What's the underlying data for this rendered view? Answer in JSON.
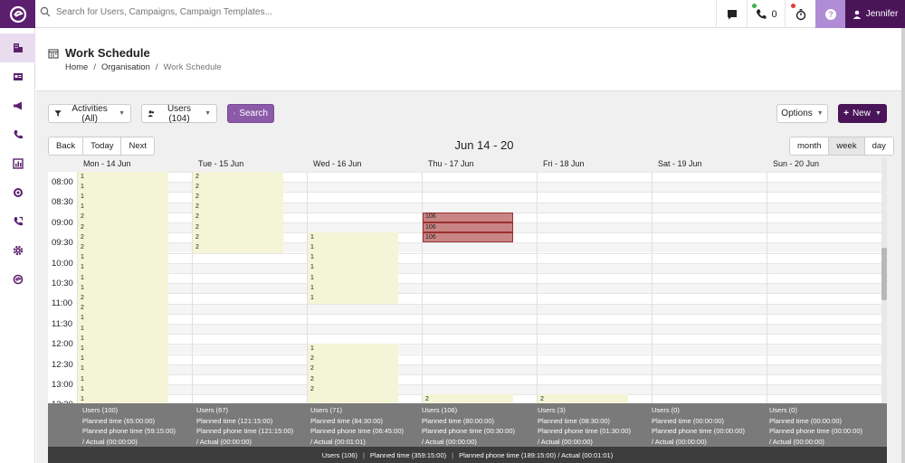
{
  "topbar": {
    "search_placeholder": "Search for Users, Campaigns, Campaign Templates...",
    "phone_count": "0",
    "user_name": "Jennifer",
    "accent": "#5b1f6e"
  },
  "sidebar": {
    "items": [
      {
        "icon": "organisation-icon",
        "active": true
      },
      {
        "icon": "id-card-icon"
      },
      {
        "icon": "megaphone-icon"
      },
      {
        "icon": "phone-icon"
      },
      {
        "icon": "reports-icon"
      },
      {
        "icon": "target-icon"
      },
      {
        "icon": "call-icon"
      },
      {
        "icon": "gear-icon"
      },
      {
        "icon": "brand-icon"
      }
    ]
  },
  "header": {
    "title": "Work Schedule",
    "breadcrumb": [
      "Home",
      "Organisation",
      "Work Schedule"
    ]
  },
  "toolbar": {
    "activities_label": "Activities (All)",
    "users_label": "Users (104)",
    "search_label": "Search",
    "options_label": "Options",
    "new_label": "New"
  },
  "nav": {
    "back": "Back",
    "today": "Today",
    "next": "Next"
  },
  "views": {
    "month": "month",
    "week": "week",
    "day": "day"
  },
  "range_title": "Jun 14 - 20",
  "days": [
    "Mon - 14 Jun",
    "Tue - 15 Jun",
    "Wed - 16 Jun",
    "Thu - 17 Jun",
    "Fri - 18 Jun",
    "Sat - 19 Jun",
    "Sun - 20 Jun"
  ],
  "times": [
    "08:00",
    "08:30",
    "09:00",
    "09:30",
    "10:00",
    "10:30",
    "11:00",
    "11:30",
    "12:00",
    "12:30",
    "13:00",
    "13:30"
  ],
  "slot_values": {
    "mon": [
      "1",
      "1",
      "1",
      "1",
      "2",
      "2",
      "2",
      "2",
      "1",
      "1",
      "1",
      "1",
      "2",
      "2",
      "1",
      "1",
      "1",
      "1",
      "1",
      "1",
      "1",
      "1",
      "1",
      "1"
    ],
    "tue": [
      "2",
      "2",
      "2",
      "2",
      "2",
      "2",
      "2",
      "2"
    ],
    "wed": [
      "1",
      "1",
      "1",
      "1",
      "1",
      "1",
      "1",
      "1",
      "2",
      "2",
      "2",
      "2"
    ],
    "thu": [
      "106",
      "106",
      "106",
      "2"
    ],
    "fri": [
      "2"
    ]
  },
  "summary": [
    {
      "users": "Users (100)",
      "planned": "Planned time (65:00:00)",
      "phone": "Planned phone time (59:15:00)",
      "actual": "/ Actual (00:00:00)"
    },
    {
      "users": "Users (67)",
      "planned": "Planned time (121:15:00)",
      "phone": "Planned phone time (121:15:00)",
      "actual": "/ Actual (00:00:00)"
    },
    {
      "users": "Users (71)",
      "planned": "Planned time (84:30:00)",
      "phone": "Planned phone time (06:45:00)",
      "actual": "/ Actual (00:01:01)"
    },
    {
      "users": "Users (106)",
      "planned": "Planned time (80:00:00)",
      "phone": "Planned phone time (00:30:00)",
      "actual": "/ Actual (00:00:00)"
    },
    {
      "users": "Users (3)",
      "planned": "Planned time (08:30:00)",
      "phone": "Planned phone time (01:30:00)",
      "actual": "/ Actual (00:00:00)"
    },
    {
      "users": "Users (0)",
      "planned": "Planned time (00:00:00)",
      "phone": "Planned phone time (00:00:00)",
      "actual": "/ Actual (00:00:00)"
    },
    {
      "users": "Users (0)",
      "planned": "Planned time (00:00:00)",
      "phone": "Planned phone time (00:00:00)",
      "actual": "/ Actual (00:00:00)"
    }
  ],
  "totals": {
    "users": "Users (106)",
    "planned": "Planned time (359:15:00)",
    "phone": "Planned phone time (189:15:00)",
    "actual": "/ Actual (00:01:01)"
  }
}
